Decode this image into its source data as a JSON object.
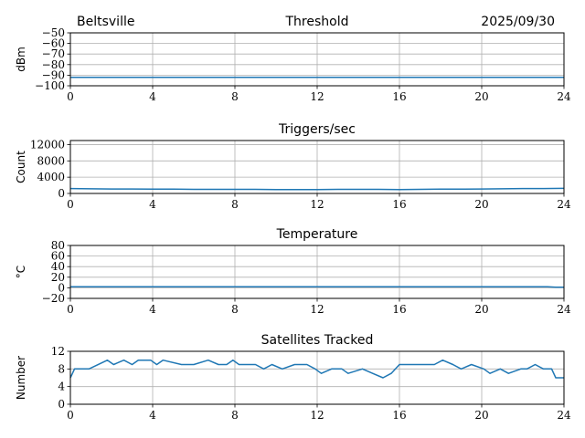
{
  "header": {
    "station": "Beltsville",
    "date": "2025/09/30"
  },
  "colors": {
    "line": "#1f77b4",
    "grid": "#b0b0b0"
  },
  "chart_data": [
    {
      "type": "line",
      "title": "Threshold",
      "ylabel": "dBm",
      "xlim": [
        0,
        24
      ],
      "ylim": [
        -100,
        -50
      ],
      "xticks": [
        "0",
        "4",
        "8",
        "12",
        "16",
        "20",
        "24"
      ],
      "yticks": [
        "-100",
        "-90",
        "-80",
        "-70",
        "-60",
        "-50"
      ],
      "grid": true,
      "x": [
        0,
        4,
        8,
        12,
        16,
        20,
        24
      ],
      "series": [
        {
          "values": [
            -92,
            -92,
            -92,
            -92,
            -92,
            -92,
            -92
          ]
        }
      ]
    },
    {
      "type": "line",
      "title": "Triggers/sec",
      "ylabel": "Count",
      "xlim": [
        0,
        24
      ],
      "ylim": [
        0,
        13000
      ],
      "xticks": [
        "0",
        "4",
        "8",
        "12",
        "16",
        "20",
        "24"
      ],
      "yticks": [
        "0",
        "4000",
        "8000",
        "12000"
      ],
      "grid": true,
      "x": [
        0,
        1,
        2,
        3,
        4,
        5,
        6,
        7,
        8,
        9,
        10,
        11,
        12,
        13,
        14,
        15,
        16,
        17,
        18,
        19,
        20,
        21,
        22,
        23,
        24
      ],
      "series": [
        {
          "values": [
            1200,
            1150,
            1100,
            1100,
            1050,
            1050,
            1000,
            1000,
            1000,
            1000,
            950,
            950,
            950,
            1000,
            1000,
            1000,
            950,
            1000,
            1050,
            1050,
            1100,
            1150,
            1200,
            1200,
            1250
          ]
        }
      ]
    },
    {
      "type": "line",
      "title": "Temperature",
      "ylabel": "°C",
      "xlim": [
        0,
        24
      ],
      "ylim": [
        -20,
        80
      ],
      "xticks": [
        "0",
        "4",
        "8",
        "12",
        "16",
        "20",
        "24"
      ],
      "yticks": [
        "-20",
        "0",
        "20",
        "40",
        "60",
        "80"
      ],
      "grid": true,
      "x": [
        0,
        4,
        8,
        12,
        16,
        20,
        23.2,
        23.6,
        24
      ],
      "series": [
        {
          "values": [
            2,
            2,
            2,
            2,
            2,
            2,
            2,
            1,
            1
          ]
        }
      ]
    },
    {
      "type": "line",
      "title": "Satellites Tracked",
      "ylabel": "Number",
      "xlim": [
        0,
        24
      ],
      "ylim": [
        0,
        12
      ],
      "xticks": [
        "0",
        "4",
        "8",
        "12",
        "16",
        "20",
        "24"
      ],
      "yticks": [
        "0",
        "4",
        "8",
        "12"
      ],
      "grid": true,
      "x": [
        0,
        0.1,
        0.2,
        0.9,
        1.8,
        2.1,
        2.6,
        3.0,
        3.3,
        3.9,
        4.2,
        4.5,
        5.4,
        6.0,
        6.7,
        7.2,
        7.6,
        7.9,
        8.2,
        9.0,
        9.4,
        9.8,
        10.3,
        10.9,
        11.5,
        11.9,
        12.2,
        12.7,
        13.2,
        13.5,
        14.2,
        14.7,
        15.2,
        15.6,
        16.0,
        16.5,
        16.9,
        17.7,
        18.1,
        18.6,
        19.0,
        19.5,
        20.1,
        20.4,
        20.9,
        21.3,
        21.9,
        22.2,
        22.6,
        23.0,
        23.4,
        23.6,
        24
      ],
      "series": [
        {
          "values": [
            6,
            7,
            8,
            8,
            10,
            9,
            10,
            9,
            10,
            10,
            9,
            10,
            9,
            9,
            10,
            9,
            9,
            10,
            9,
            9,
            8,
            9,
            8,
            9,
            9,
            8,
            7,
            8,
            8,
            7,
            8,
            7,
            6,
            7,
            9,
            9,
            9,
            9,
            10,
            9,
            8,
            9,
            8,
            7,
            8,
            7,
            8,
            8,
            9,
            8,
            8,
            6,
            6
          ]
        }
      ]
    }
  ]
}
